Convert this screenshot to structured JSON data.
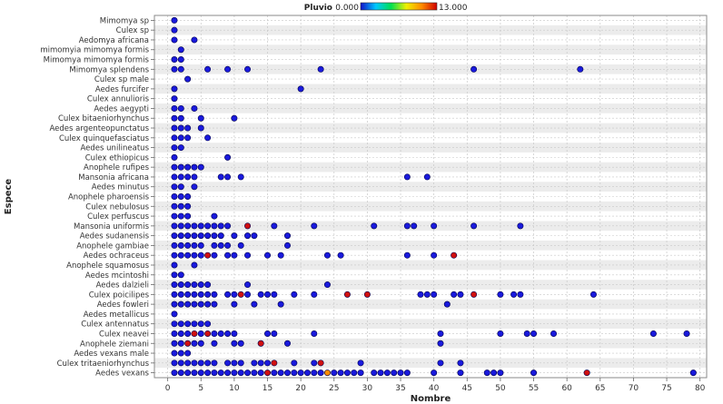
{
  "chart_data": {
    "type": "scatter",
    "title": "",
    "xlabel": "Nombre",
    "ylabel": "Espece",
    "xlim": [
      -2,
      81
    ],
    "x_ticks": [
      0,
      5,
      10,
      15,
      20,
      25,
      30,
      35,
      40,
      45,
      50,
      55,
      60,
      65,
      70,
      75,
      80
    ],
    "grid": true,
    "legend": {
      "title": "Pluvio",
      "min_label": "0.000",
      "max_label": "13.000",
      "min": 0,
      "max": 13,
      "colors": [
        "#1010c8",
        "#00c8ff",
        "#00e050",
        "#f0f000",
        "#ff8c00",
        "#d00000"
      ],
      "placement": "top-center"
    },
    "categories": [
      "Mimomya sp",
      "Culex sp",
      "Aedomya africana",
      "mimomyia mimomya formis",
      "Mimomya mimomya formis",
      "Mimomya splendens",
      "Culex sp male",
      "Aedes furcifer",
      "Culex annulioris",
      "Aedes aegypti",
      "Culex bitaeniorhynchus",
      "Aedes argenteopunctatus",
      "Culex quinquefasciatus",
      "Aedes unilineatus",
      "Culex ethiopicus",
      "Anophele rufipes",
      "Mansonia africana",
      "Aedes minutus",
      "Anophele pharoensis",
      "Culex nebulosus",
      "Culex perfuscus",
      "Mansonia uniformis",
      "Aedes sudanensis",
      "Anophele gambiae",
      "Aedes ochraceus",
      "Anophele squamosus",
      "Aedes mcintoshi",
      "Aedes dalzieli",
      "Culex poicilipes",
      "Aedes fowleri",
      "Aedes metallicus",
      "Culex antennatus",
      "Culex neavei",
      "Anophele ziemani",
      "Aedes vexans male",
      "Culex tritaeniorhynchus",
      "Aedes vexans"
    ],
    "points": [
      {
        "y": "Mimomya sp",
        "x": [
          1
        ]
      },
      {
        "y": "Culex sp",
        "x": [
          1
        ]
      },
      {
        "y": "Aedomya africana",
        "x": [
          1,
          4
        ]
      },
      {
        "y": "mimomyia mimomya formis",
        "x": [
          2
        ]
      },
      {
        "y": "Mimomya mimomya formis",
        "x": [
          1,
          2
        ]
      },
      {
        "y": "Mimomya splendens",
        "x": [
          1,
          2,
          6,
          9,
          12,
          23,
          46,
          62
        ]
      },
      {
        "y": "Culex sp male",
        "x": [
          3
        ]
      },
      {
        "y": "Aedes furcifer",
        "x": [
          1,
          20
        ]
      },
      {
        "y": "Culex annulioris",
        "x": [
          1
        ]
      },
      {
        "y": "Aedes aegypti",
        "x": [
          1,
          2,
          4
        ]
      },
      {
        "y": "Culex bitaeniorhynchus",
        "x": [
          1,
          2,
          5,
          10
        ]
      },
      {
        "y": "Aedes argenteopunctatus",
        "x": [
          1,
          2,
          3,
          5
        ]
      },
      {
        "y": "Culex quinquefasciatus",
        "x": [
          1,
          2,
          3,
          6
        ]
      },
      {
        "y": "Aedes unilineatus",
        "x": [
          1,
          2
        ]
      },
      {
        "y": "Culex ethiopicus",
        "x": [
          1,
          9
        ]
      },
      {
        "y": "Anophele rufipes",
        "x": [
          1,
          2,
          3,
          4,
          5
        ]
      },
      {
        "y": "Mansonia africana",
        "x": [
          1,
          2,
          3,
          4,
          8,
          9,
          11,
          36,
          39
        ]
      },
      {
        "y": "Aedes minutus",
        "x": [
          1,
          2,
          4
        ]
      },
      {
        "y": "Anophele pharoensis",
        "x": [
          1,
          2,
          3
        ]
      },
      {
        "y": "Culex nebulosus",
        "x": [
          1,
          2,
          3
        ]
      },
      {
        "y": "Culex perfuscus",
        "x": [
          1,
          2,
          3,
          7
        ]
      },
      {
        "y": "Mansonia uniformis",
        "x": [
          1,
          2,
          3,
          4,
          5,
          6,
          7,
          8,
          9,
          12,
          16,
          22,
          31,
          36,
          37,
          40,
          46,
          53
        ],
        "red_x": [
          12
        ]
      },
      {
        "y": "Aedes sudanensis",
        "x": [
          1,
          2,
          3,
          4,
          5,
          6,
          7,
          8,
          10,
          12,
          13,
          18
        ]
      },
      {
        "y": "Anophele gambiae",
        "x": [
          1,
          2,
          3,
          4,
          5,
          7,
          8,
          9,
          11,
          18
        ]
      },
      {
        "y": "Aedes ochraceus",
        "x": [
          1,
          2,
          3,
          4,
          5,
          6,
          7,
          9,
          10,
          12,
          15,
          17,
          24,
          26,
          36,
          40,
          43
        ],
        "red_x": [
          6,
          43
        ]
      },
      {
        "y": "Anophele squamosus",
        "x": [
          1,
          4
        ]
      },
      {
        "y": "Aedes mcintoshi",
        "x": [
          1,
          2
        ]
      },
      {
        "y": "Aedes dalzieli",
        "x": [
          1,
          2,
          3,
          4,
          5,
          6,
          12,
          24
        ]
      },
      {
        "y": "Culex poicilipes",
        "x": [
          1,
          2,
          3,
          4,
          5,
          6,
          7,
          9,
          10,
          11,
          12,
          14,
          15,
          16,
          19,
          22,
          27,
          30,
          38,
          39,
          40,
          43,
          44,
          46,
          50,
          52,
          53,
          64
        ],
        "red_x": [
          11,
          27,
          30,
          46
        ]
      },
      {
        "y": "Aedes fowleri",
        "x": [
          1,
          2,
          3,
          4,
          5,
          6,
          7,
          10,
          13,
          17,
          42
        ]
      },
      {
        "y": "Aedes metallicus",
        "x": [
          1
        ]
      },
      {
        "y": "Culex antennatus",
        "x": [
          1,
          2,
          3,
          4,
          5,
          6
        ]
      },
      {
        "y": "Culex neavei",
        "x": [
          1,
          2,
          3,
          4,
          5,
          6,
          7,
          8,
          9,
          10,
          15,
          16,
          22,
          41,
          50,
          54,
          55,
          58,
          73,
          78
        ],
        "red_x": [
          4,
          6
        ]
      },
      {
        "y": "Anophele ziemani",
        "x": [
          1,
          2,
          3,
          4,
          5,
          7,
          10,
          11,
          14,
          18,
          41
        ],
        "red_x": [
          3,
          14
        ]
      },
      {
        "y": "Aedes vexans male",
        "x": [
          1,
          2,
          3
        ]
      },
      {
        "y": "Culex tritaeniorhynchus",
        "x": [
          1,
          2,
          3,
          4,
          5,
          6,
          7,
          9,
          10,
          11,
          13,
          14,
          15,
          16,
          19,
          22,
          23,
          29,
          41,
          44
        ],
        "red_x": [
          16,
          23
        ]
      },
      {
        "y": "Aedes vexans",
        "x": [
          1,
          2,
          3,
          4,
          5,
          6,
          7,
          8,
          9,
          10,
          11,
          12,
          13,
          14,
          15,
          16,
          17,
          18,
          19,
          20,
          21,
          22,
          23,
          24,
          25,
          26,
          27,
          28,
          29,
          31,
          32,
          33,
          34,
          35,
          36,
          40,
          44,
          48,
          49,
          50,
          55,
          63,
          79
        ],
        "red_x": [
          15,
          63
        ],
        "orange_x": [
          24
        ]
      }
    ]
  },
  "colors": {
    "point_low": "#1a1adc",
    "point_high": "#d01010",
    "point_mid": "#ff8c00",
    "point_stroke": "#000050",
    "band_light": "#ffffff",
    "band_dark": "#ececec",
    "grid": "#c8c8c8"
  }
}
